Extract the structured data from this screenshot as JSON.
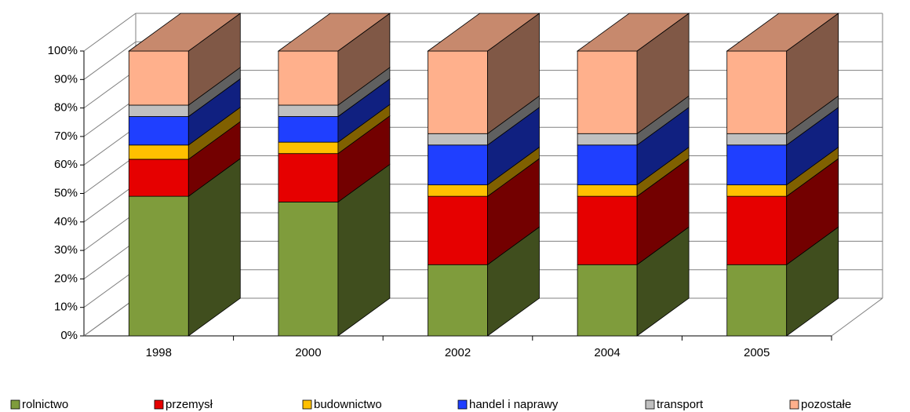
{
  "chart_data": {
    "type": "bar3d_stacked",
    "categories": [
      "1998",
      "2000",
      "2002",
      "2004",
      "2005"
    ],
    "series": [
      {
        "name": "rolnictwo",
        "color": "#7f9c3c",
        "values": [
          49,
          47,
          25,
          25,
          25
        ]
      },
      {
        "name": "przemysł",
        "color": "#e60000",
        "values": [
          13,
          17,
          24,
          24,
          24
        ]
      },
      {
        "name": "budownictwo",
        "color": "#ffc000",
        "values": [
          5,
          4,
          4,
          4,
          4
        ]
      },
      {
        "name": "handel i naprawy",
        "color": "#1f3fff",
        "values": [
          10,
          9,
          14,
          14,
          14
        ]
      },
      {
        "name": "transport",
        "color": "#c0c0c0",
        "values": [
          4,
          4,
          4,
          4,
          4
        ]
      },
      {
        "name": "pozostałe",
        "color": "#ffb08c",
        "values": [
          19,
          19,
          29,
          29,
          29
        ]
      }
    ],
    "ylim": [
      0,
      100
    ],
    "yticks": [
      {
        "value": 0,
        "label": "0%"
      },
      {
        "value": 10,
        "label": "10%"
      },
      {
        "value": 20,
        "label": "20%"
      },
      {
        "value": 30,
        "label": "30%"
      },
      {
        "value": 40,
        "label": "40%"
      },
      {
        "value": 50,
        "label": "50%"
      },
      {
        "value": 60,
        "label": "60%"
      },
      {
        "value": 70,
        "label": "70%"
      },
      {
        "value": 80,
        "label": "80%"
      },
      {
        "value": 90,
        "label": "90%"
      },
      {
        "value": 100,
        "label": "100%"
      }
    ],
    "grid": true,
    "legend": "bottom"
  }
}
